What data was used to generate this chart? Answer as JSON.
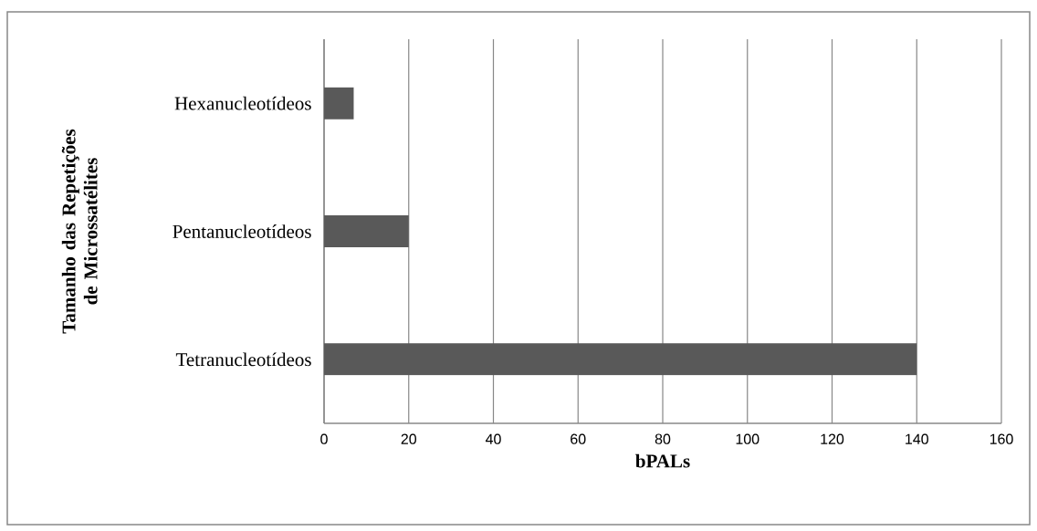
{
  "chart_data": {
    "type": "bar",
    "orientation": "horizontal",
    "xlabel": "bPALs",
    "ylabel": "Tamanho das Repetições de Microssatélites",
    "categories": [
      "Hexanucleotídeos",
      "Pentanucleotídeos",
      "Tetranucleotídeos"
    ],
    "values": [
      7,
      20,
      140
    ],
    "color": "#595959",
    "xlim": [
      0,
      160
    ],
    "xticks": [
      0,
      20,
      40,
      60,
      80,
      100,
      120,
      140,
      160
    ],
    "grid": "x"
  }
}
